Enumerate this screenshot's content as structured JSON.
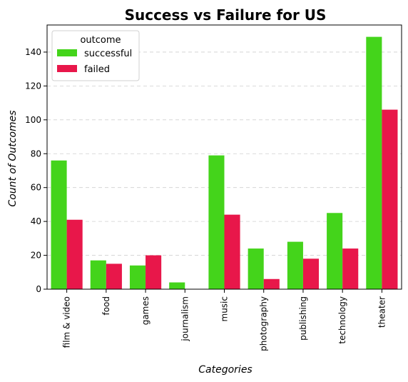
{
  "chart_data": {
    "type": "bar",
    "title": "Success vs Failure for US",
    "xlabel": "Categories",
    "ylabel": "Count of Outcomes",
    "categories": [
      "film & video",
      "food",
      "games",
      "journalism",
      "music",
      "photography",
      "publishing",
      "technology",
      "theater"
    ],
    "series": [
      {
        "name": "successful",
        "color": "#44d41b",
        "values": [
          76,
          17,
          14,
          4,
          79,
          24,
          28,
          45,
          149
        ]
      },
      {
        "name": "failed",
        "color": "#e8174a",
        "values": [
          41,
          15,
          20,
          0,
          44,
          6,
          18,
          24,
          106
        ]
      }
    ],
    "ylim": [
      0,
      156
    ],
    "yticks": [
      0,
      20,
      40,
      60,
      80,
      100,
      120,
      140
    ],
    "grid": true,
    "legend": {
      "title": "outcome",
      "placement": "top-left"
    }
  }
}
